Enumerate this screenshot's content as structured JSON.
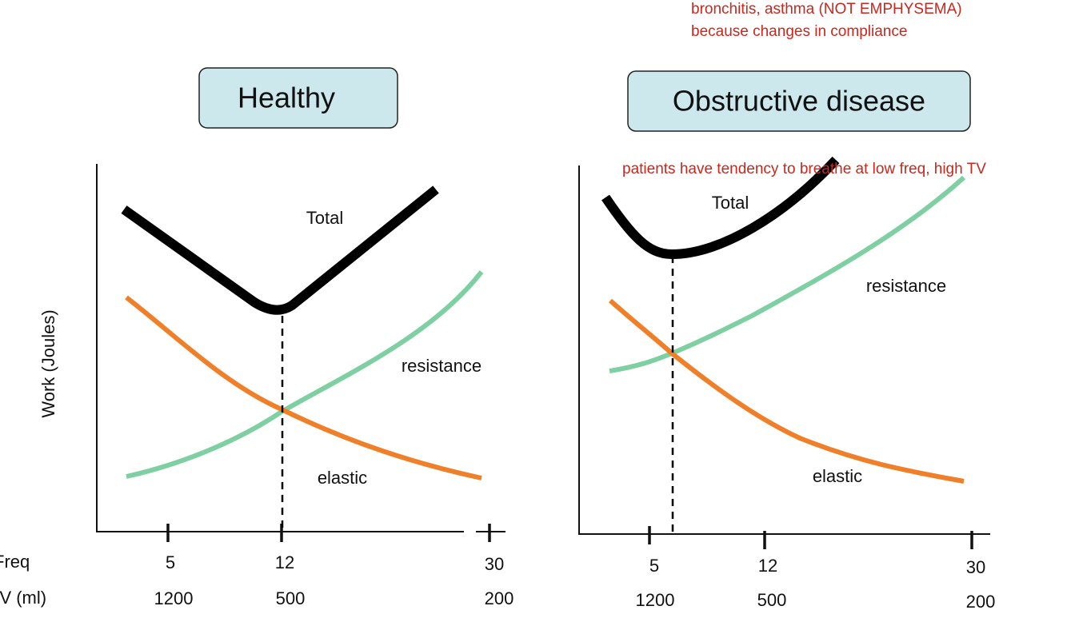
{
  "annotations": {
    "top_line1": "bronchitis, asthma (NOT EMPHYSEMA)",
    "top_line2": "because changes in compliance",
    "patients": "patients have tendency to breathe at low freq, high TV"
  },
  "y_axis_label": "Work (Joules)",
  "row_labels": {
    "freq": "Freq",
    "tv": "TV (ml)"
  },
  "panels": [
    {
      "title": "Healthy",
      "labels": {
        "total": "Total",
        "resistance": "resistance",
        "elastic": "elastic"
      },
      "freq_ticks": [
        "5",
        "12",
        "30"
      ],
      "tv_ticks": [
        "1200",
        "500",
        "200"
      ]
    },
    {
      "title": "Obstructive disease",
      "labels": {
        "total": "Total",
        "resistance": "resistance",
        "elastic": "elastic"
      },
      "freq_ticks": [
        "5",
        "12",
        "30"
      ],
      "tv_ticks": [
        "1200",
        "500",
        "200"
      ]
    }
  ]
}
